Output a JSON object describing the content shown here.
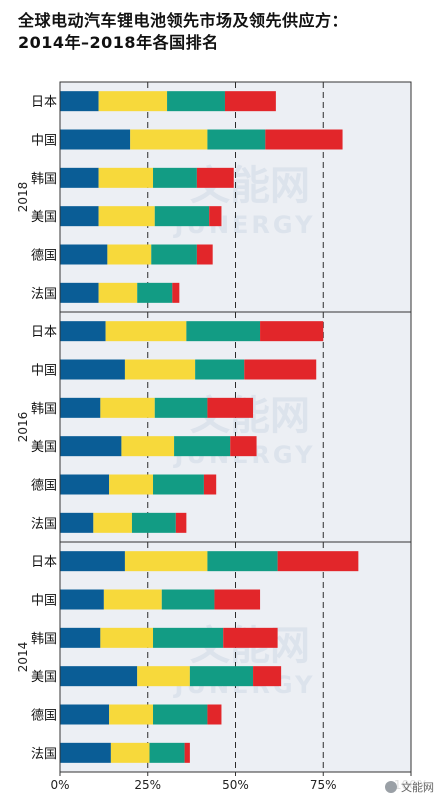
{
  "header": {
    "title_line1": "全球电动汽车锂电池领先市场及领先供应方：",
    "title_line2": "2014年–2018年各国排名"
  },
  "watermark": {
    "brand_cn": "文能网",
    "brand_en": "JUNERGY",
    "corner_text": "文能网"
  },
  "chart_data": {
    "type": "bar",
    "orientation": "horizontal",
    "stacked": true,
    "xlim": [
      0,
      100
    ],
    "x_ticks": [
      "0%",
      "25%",
      "50%",
      "75%",
      "100%"
    ],
    "x_tick_values": [
      0,
      25,
      50,
      75,
      100
    ],
    "grid": "dashed vertical lines at 25%, 50%, 75%",
    "legend": "none",
    "segment_colors": [
      "#0a5d96",
      "#f7d93b",
      "#129c84",
      "#e2262a"
    ],
    "panels": [
      {
        "year": "2018",
        "rows": [
          {
            "country": "日本",
            "values": [
              11,
              19.5,
              16.5,
              14.5
            ]
          },
          {
            "country": "中国",
            "values": [
              20,
              22,
              16.5,
              22
            ]
          },
          {
            "country": "韩国",
            "values": [
              11,
              15.5,
              12.5,
              10.5
            ]
          },
          {
            "country": "美国",
            "values": [
              11,
              16,
              15.5,
              3.5
            ]
          },
          {
            "country": "德国",
            "values": [
              13.5,
              12.5,
              13,
              4.5
            ]
          },
          {
            "country": "法国",
            "values": [
              11,
              11,
              10,
              2
            ]
          }
        ]
      },
      {
        "year": "2016",
        "rows": [
          {
            "country": "日本",
            "values": [
              13,
              23,
              21,
              18
            ]
          },
          {
            "country": "中国",
            "values": [
              18.5,
              20,
              14,
              20.5
            ]
          },
          {
            "country": "韩国",
            "values": [
              11.5,
              15.5,
              15,
              13
            ]
          },
          {
            "country": "美国",
            "values": [
              17.5,
              15,
              16,
              7.5
            ]
          },
          {
            "country": "德国",
            "values": [
              14,
              12.5,
              14.5,
              3.5
            ]
          },
          {
            "country": "法国",
            "values": [
              9.5,
              11,
              12.5,
              3
            ]
          }
        ]
      },
      {
        "year": "2014",
        "rows": [
          {
            "country": "日本",
            "values": [
              18.5,
              23.5,
              20,
              23
            ]
          },
          {
            "country": "中国",
            "values": [
              12.5,
              16.5,
              15,
              13
            ]
          },
          {
            "country": "韩国",
            "values": [
              11.5,
              15,
              20,
              15.5
            ]
          },
          {
            "country": "美国",
            "values": [
              22,
              15,
              18,
              8
            ]
          },
          {
            "country": "德国",
            "values": [
              14,
              12.5,
              15.5,
              4
            ]
          },
          {
            "country": "法国",
            "values": [
              14.5,
              11,
              10,
              1.5
            ]
          }
        ]
      }
    ]
  }
}
